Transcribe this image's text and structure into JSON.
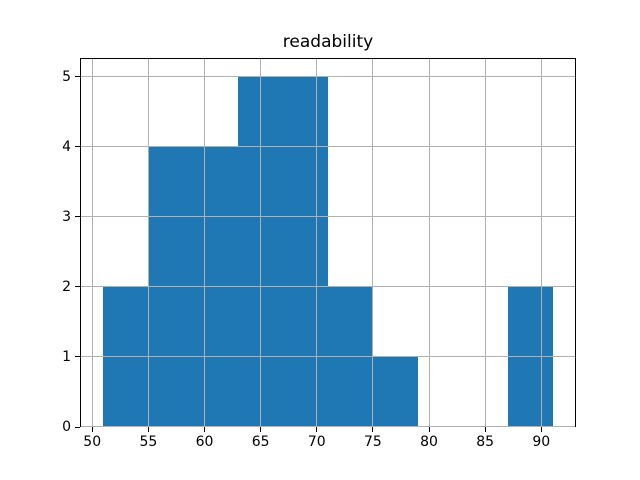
{
  "chart_data": {
    "type": "bar",
    "subtype": "histogram",
    "title": "readability",
    "xlabel": "",
    "ylabel": "",
    "bin_edges": [
      51,
      55,
      59,
      63,
      67,
      71,
      75,
      79,
      83,
      87,
      91
    ],
    "counts": [
      2,
      4,
      4,
      5,
      5,
      2,
      1,
      0,
      0,
      2
    ],
    "x_ticks": [
      50,
      55,
      60,
      65,
      70,
      75,
      80,
      85,
      90
    ],
    "y_ticks": [
      0,
      1,
      2,
      3,
      4,
      5
    ],
    "xlim": [
      49,
      93
    ],
    "ylim": [
      0,
      5.25
    ],
    "grid": true,
    "legend": null,
    "bar_color": "#1f77b4",
    "grid_color": "#b0b0b0",
    "spine_color": "#000000",
    "background_color": "#ffffff",
    "text_color": "#000000"
  }
}
